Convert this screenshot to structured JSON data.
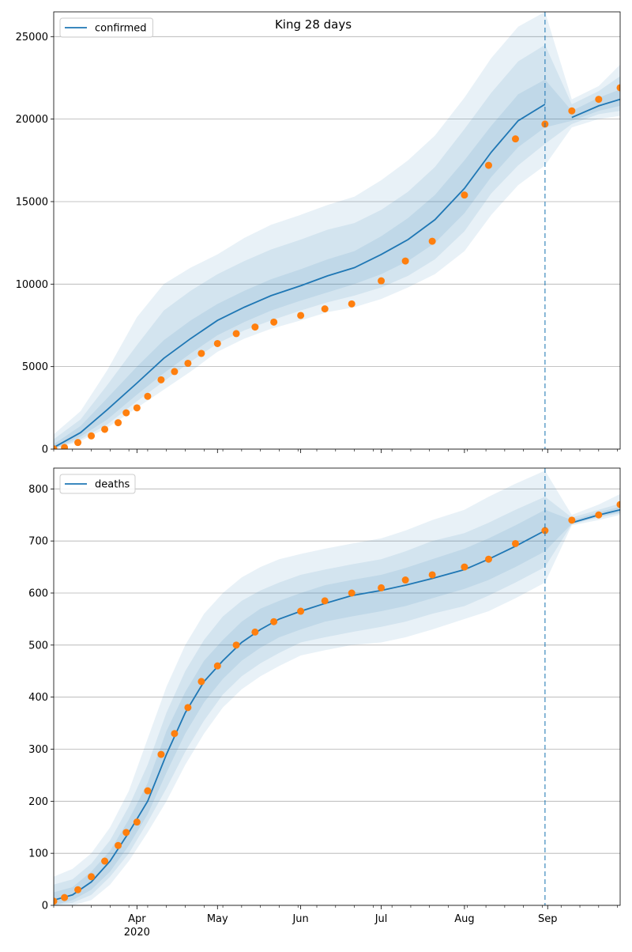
{
  "chart_data": [
    {
      "type": "line",
      "title": "King 28 days",
      "legend": "top-left",
      "legend_label": "confirmed",
      "grid": "horizontal",
      "xlim": [
        "2020-03-01",
        "2020-09-28"
      ],
      "ylim": [
        0,
        26500
      ],
      "yticks": [
        0,
        5000,
        10000,
        15000,
        20000,
        25000
      ],
      "xticks": [
        {
          "date": "2020-04-01",
          "label": "Apr",
          "sublabel": "2020"
        },
        {
          "date": "2020-05-01",
          "label": "May",
          "sublabel": ""
        },
        {
          "date": "2020-06-01",
          "label": "Jun",
          "sublabel": ""
        },
        {
          "date": "2020-07-01",
          "label": "Jul",
          "sublabel": ""
        },
        {
          "date": "2020-08-01",
          "label": "Aug",
          "sublabel": ""
        },
        {
          "date": "2020-09-01",
          "label": "Sep",
          "sublabel": ""
        }
      ],
      "forecast_date": "2020-08-31",
      "colors": {
        "model": "#1f77b4",
        "observed": "#ff7f0e",
        "band": "#1f77b4"
      },
      "model_x": [
        "2020-03-01",
        "2020-03-11",
        "2020-03-21",
        "2020-04-01",
        "2020-04-11",
        "2020-04-21",
        "2020-05-01",
        "2020-05-11",
        "2020-05-21",
        "2020-06-01",
        "2020-06-11",
        "2020-06-21",
        "2020-07-01",
        "2020-07-11",
        "2020-07-21",
        "2020-08-01",
        "2020-08-11",
        "2020-08-21",
        "2020-08-31",
        "2020-09-10",
        "2020-09-20",
        "2020-09-28"
      ],
      "model_y": [
        100,
        1000,
        2400,
        4000,
        5500,
        6700,
        7800,
        8600,
        9300,
        9900,
        10500,
        11000,
        11800,
        12700,
        13900,
        15800,
        18000,
        19900,
        20900,
        20100,
        20800,
        21200
      ],
      "bands": [
        {
          "lower": [
            0,
            500,
            1300,
            2500,
            3600,
            4700,
            5900,
            6700,
            7300,
            7800,
            8300,
            8600,
            9100,
            9800,
            10600,
            12000,
            14200,
            16000,
            17200,
            19500,
            20000,
            20200
          ],
          "upper": [
            900,
            2300,
            4800,
            8000,
            10000,
            11000,
            11800,
            12800,
            13600,
            14200,
            14800,
            15300,
            16300,
            17500,
            19000,
            21300,
            23700,
            25600,
            26500,
            21200,
            22000,
            23300
          ]
        },
        {
          "lower": [
            0,
            600,
            1500,
            2900,
            4100,
            5300,
            6400,
            7200,
            7800,
            8400,
            8900,
            9300,
            9800,
            10500,
            11500,
            13200,
            15500,
            17200,
            18500,
            19700,
            20300,
            20500
          ],
          "upper": [
            600,
            1800,
            3900,
            6300,
            8400,
            9600,
            10600,
            11400,
            12100,
            12700,
            13300,
            13700,
            14500,
            15600,
            17100,
            19400,
            21600,
            23500,
            24500,
            20900,
            21700,
            22600
          ]
        },
        {
          "lower": [
            0,
            750,
            1800,
            3300,
            4600,
            5800,
            6900,
            7700,
            8400,
            9000,
            9500,
            10000,
            10600,
            11400,
            12500,
            14300,
            16500,
            18300,
            19500,
            19900,
            20500,
            20800
          ],
          "upper": [
            300,
            1400,
            3100,
            5000,
            6600,
            7800,
            8800,
            9600,
            10300,
            10900,
            11500,
            12000,
            12900,
            14000,
            15400,
            17500,
            19600,
            21500,
            22400,
            20500,
            21300,
            21800
          ]
        }
      ],
      "observed_x": [
        "2020-03-01",
        "2020-03-05",
        "2020-03-10",
        "2020-03-15",
        "2020-03-20",
        "2020-03-25",
        "2020-03-28",
        "2020-04-01",
        "2020-04-05",
        "2020-04-10",
        "2020-04-15",
        "2020-04-20",
        "2020-04-25",
        "2020-05-01",
        "2020-05-08",
        "2020-05-15",
        "2020-05-22",
        "2020-06-01",
        "2020-06-10",
        "2020-06-20",
        "2020-07-01",
        "2020-07-10",
        "2020-07-20",
        "2020-08-01",
        "2020-08-10",
        "2020-08-20",
        "2020-08-31",
        "2020-09-10",
        "2020-09-20",
        "2020-09-28"
      ],
      "observed_y": [
        20,
        100,
        400,
        800,
        1200,
        1600,
        2200,
        2500,
        3200,
        4200,
        4700,
        5200,
        5800,
        6400,
        7000,
        7400,
        7700,
        8100,
        8500,
        8800,
        10200,
        11400,
        12600,
        15400,
        17200,
        18800,
        19700,
        20500,
        21200,
        21900
      ]
    },
    {
      "type": "line",
      "title": "",
      "legend": "top-left",
      "legend_label": "deaths",
      "grid": "horizontal",
      "xlim": [
        "2020-03-01",
        "2020-09-28"
      ],
      "ylim": [
        0,
        840
      ],
      "yticks": [
        0,
        100,
        200,
        300,
        400,
        500,
        600,
        700,
        800
      ],
      "xticks": [
        {
          "date": "2020-04-01",
          "label": "Apr",
          "sublabel": "2020"
        },
        {
          "date": "2020-05-01",
          "label": "May",
          "sublabel": ""
        },
        {
          "date": "2020-06-01",
          "label": "Jun",
          "sublabel": ""
        },
        {
          "date": "2020-07-01",
          "label": "Jul",
          "sublabel": ""
        },
        {
          "date": "2020-08-01",
          "label": "Aug",
          "sublabel": ""
        },
        {
          "date": "2020-09-01",
          "label": "Sep",
          "sublabel": ""
        }
      ],
      "forecast_date": "2020-08-31",
      "colors": {
        "model": "#1f77b4",
        "observed": "#ff7f0e",
        "band": "#1f77b4"
      },
      "model_x": [
        "2020-03-01",
        "2020-03-08",
        "2020-03-15",
        "2020-03-22",
        "2020-03-29",
        "2020-04-05",
        "2020-04-12",
        "2020-04-19",
        "2020-04-26",
        "2020-05-03",
        "2020-05-10",
        "2020-05-17",
        "2020-05-24",
        "2020-06-01",
        "2020-06-10",
        "2020-06-20",
        "2020-07-01",
        "2020-07-10",
        "2020-07-20",
        "2020-08-01",
        "2020-08-10",
        "2020-08-20",
        "2020-08-31",
        "2020-09-10",
        "2020-09-20",
        "2020-09-28"
      ],
      "model_y": [
        10,
        20,
        45,
        85,
        140,
        200,
        290,
        370,
        430,
        470,
        505,
        530,
        550,
        565,
        580,
        595,
        605,
        615,
        628,
        645,
        665,
        690,
        720,
        735,
        750,
        760
      ],
      "bands": [
        {
          "lower": [
            0,
            0,
            10,
            40,
            85,
            140,
            200,
            270,
            330,
            380,
            415,
            440,
            460,
            480,
            490,
            500,
            505,
            515,
            530,
            550,
            565,
            590,
            620,
            730,
            740,
            750
          ],
          "upper": [
            55,
            70,
            100,
            150,
            220,
            320,
            420,
            500,
            560,
            600,
            630,
            650,
            665,
            675,
            685,
            695,
            705,
            720,
            740,
            760,
            785,
            810,
            835,
            750,
            770,
            790
          ]
        },
        {
          "lower": [
            0,
            5,
            20,
            55,
            100,
            160,
            225,
            295,
            355,
            405,
            440,
            465,
            485,
            505,
            515,
            525,
            535,
            545,
            560,
            575,
            595,
            620,
            650,
            732,
            745,
            753
          ],
          "upper": [
            40,
            50,
            80,
            125,
            190,
            270,
            370,
            450,
            510,
            555,
            585,
            605,
            620,
            635,
            645,
            655,
            665,
            680,
            700,
            715,
            735,
            760,
            785,
            745,
            760,
            772
          ]
        },
        {
          "lower": [
            0,
            10,
            30,
            65,
            115,
            175,
            255,
            330,
            390,
            435,
            470,
            495,
            515,
            530,
            545,
            555,
            565,
            575,
            590,
            608,
            625,
            650,
            680,
            733,
            747,
            755
          ],
          "upper": [
            25,
            35,
            65,
            105,
            165,
            235,
            335,
            410,
            470,
            510,
            545,
            570,
            585,
            600,
            615,
            625,
            635,
            648,
            665,
            685,
            705,
            730,
            760,
            740,
            755,
            766
          ]
        }
      ],
      "observed_x": [
        "2020-03-01",
        "2020-03-05",
        "2020-03-10",
        "2020-03-15",
        "2020-03-20",
        "2020-03-25",
        "2020-03-28",
        "2020-04-01",
        "2020-04-05",
        "2020-04-10",
        "2020-04-15",
        "2020-04-20",
        "2020-04-25",
        "2020-05-01",
        "2020-05-08",
        "2020-05-15",
        "2020-05-22",
        "2020-06-01",
        "2020-06-10",
        "2020-06-20",
        "2020-07-01",
        "2020-07-10",
        "2020-07-20",
        "2020-08-01",
        "2020-08-10",
        "2020-08-20",
        "2020-08-31",
        "2020-09-10",
        "2020-09-20",
        "2020-09-28"
      ],
      "observed_y": [
        8,
        15,
        30,
        55,
        85,
        115,
        140,
        160,
        220,
        290,
        330,
        380,
        430,
        460,
        500,
        525,
        545,
        565,
        585,
        600,
        610,
        625,
        635,
        650,
        665,
        695,
        720,
        740,
        750,
        770
      ]
    }
  ]
}
